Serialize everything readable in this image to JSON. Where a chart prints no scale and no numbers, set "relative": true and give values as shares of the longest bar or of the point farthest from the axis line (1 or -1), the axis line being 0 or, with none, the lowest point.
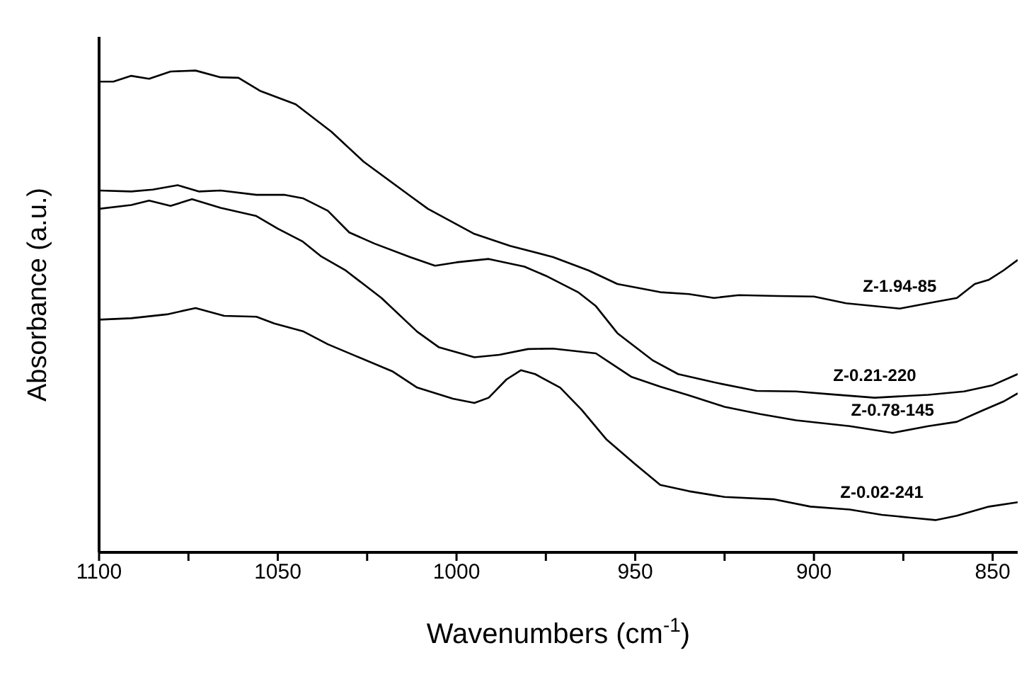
{
  "chart_data": {
    "type": "line",
    "xlabel": "Wavenumbers (cm$^{-1}$)",
    "ylabel": "Absorbance (a.u.)",
    "relative": true,
    "xlim": [
      1100,
      843
    ],
    "xticks": [
      1100,
      {
        "value": 1075,
        "label": null
      },
      1050,
      {
        "value": 1025,
        "label": null
      },
      1000,
      {
        "value": 975,
        "label": null
      },
      950,
      {
        "value": 925,
        "label": null
      },
      900,
      {
        "value": 875,
        "label": null
      },
      850
    ],
    "grid": false,
    "legend": false,
    "marker": "none",
    "line_style": "solid",
    "series": [
      {
        "name": "Z-1.94-85",
        "color": "#000000",
        "x": [
          1100,
          1096,
          1091,
          1086,
          1080,
          1073,
          1066,
          1061,
          1055,
          1045,
          1035,
          1026,
          1013,
          1008,
          995,
          985,
          973,
          963,
          955,
          943,
          935,
          928,
          921,
          910,
          900,
          891,
          883,
          876,
          866,
          860,
          855,
          851,
          847,
          843
        ],
        "values": [
          0.977,
          0.977,
          0.989,
          0.983,
          0.998,
          1.0,
          0.986,
          0.985,
          0.958,
          0.93,
          0.873,
          0.811,
          0.74,
          0.713,
          0.661,
          0.636,
          0.613,
          0.585,
          0.557,
          0.54,
          0.536,
          0.528,
          0.534,
          0.532,
          0.531,
          0.517,
          0.511,
          0.506,
          0.52,
          0.528,
          0.557,
          0.566,
          0.585,
          0.607
        ]
      },
      {
        "name": "Z-0.21-220",
        "color": "#000000",
        "x": [
          1100,
          1091,
          1085,
          1078,
          1072,
          1066,
          1056,
          1048,
          1043,
          1036,
          1030,
          1023,
          1013,
          1006,
          1000,
          991,
          981,
          975,
          966,
          961,
          955,
          945,
          938,
          928,
          916,
          905,
          895,
          883,
          868,
          858,
          850,
          843
        ],
        "values": [
          0.751,
          0.749,
          0.753,
          0.762,
          0.749,
          0.751,
          0.742,
          0.742,
          0.735,
          0.709,
          0.664,
          0.641,
          0.613,
          0.595,
          0.602,
          0.609,
          0.593,
          0.574,
          0.54,
          0.511,
          0.455,
          0.398,
          0.37,
          0.353,
          0.335,
          0.334,
          0.328,
          0.321,
          0.327,
          0.334,
          0.347,
          0.37
        ]
      },
      {
        "name": "Z-0.78-145",
        "color": "#000000",
        "x": [
          1100,
          1091,
          1086,
          1080,
          1074,
          1066,
          1056,
          1050,
          1043,
          1038,
          1031,
          1021,
          1011,
          1005,
          995,
          988,
          980,
          973,
          961,
          951,
          943,
          935,
          925,
          915,
          905,
          890,
          878,
          868,
          860,
          853,
          847,
          843
        ],
        "values": [
          0.713,
          0.721,
          0.73,
          0.719,
          0.733,
          0.715,
          0.698,
          0.672,
          0.645,
          0.615,
          0.585,
          0.528,
          0.458,
          0.426,
          0.405,
          0.41,
          0.422,
          0.423,
          0.413,
          0.364,
          0.344,
          0.326,
          0.302,
          0.287,
          0.274,
          0.262,
          0.248,
          0.262,
          0.271,
          0.294,
          0.313,
          0.33
        ]
      },
      {
        "name": "Z-0.02-241",
        "color": "#000000",
        "x": [
          1100,
          1091,
          1081,
          1073,
          1065,
          1056,
          1051,
          1043,
          1036,
          1028,
          1018,
          1011,
          1001,
          995,
          991,
          986,
          982,
          978,
          971,
          965,
          958,
          950,
          943,
          935,
          925,
          911,
          901,
          890,
          881,
          873,
          866,
          860,
          851,
          843
        ],
        "values": [
          0.483,
          0.486,
          0.494,
          0.507,
          0.491,
          0.489,
          0.475,
          0.459,
          0.432,
          0.407,
          0.376,
          0.342,
          0.319,
          0.31,
          0.321,
          0.359,
          0.378,
          0.37,
          0.342,
          0.296,
          0.234,
          0.183,
          0.14,
          0.127,
          0.115,
          0.11,
          0.095,
          0.089,
          0.078,
          0.072,
          0.067,
          0.076,
          0.095,
          0.104
        ]
      }
    ]
  }
}
